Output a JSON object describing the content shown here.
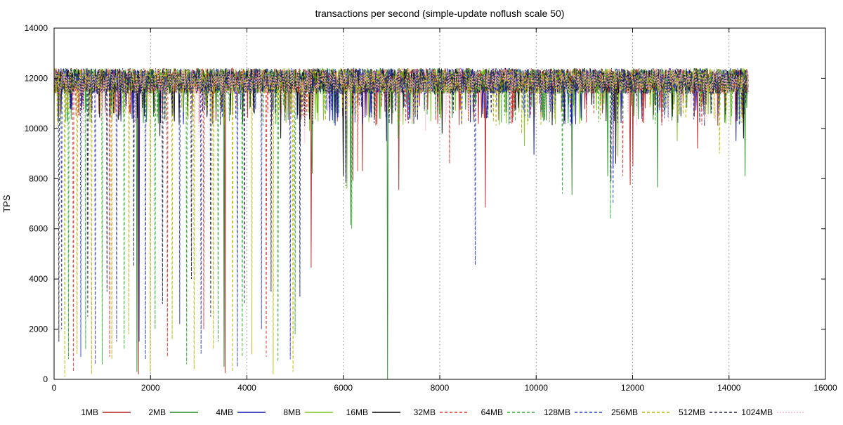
{
  "chart_data": {
    "type": "line",
    "title": "transactions per second (simple-update noflush scale 50)",
    "xlabel": "",
    "ylabel": "TPS",
    "xlim": [
      0,
      16000
    ],
    "ylim": [
      0,
      14000
    ],
    "xticks": [
      0,
      2000,
      4000,
      6000,
      8000,
      10000,
      12000,
      14000,
      16000
    ],
    "yticks": [
      0,
      2000,
      4000,
      6000,
      8000,
      10000,
      12000,
      14000
    ],
    "x_grid": true,
    "y_grid": false,
    "legend_position": "bottom",
    "x_range_of_data": [
      0,
      14400
    ],
    "baseline_band": [
      11200,
      12400
    ],
    "series": [
      {
        "name": "1MB",
        "color": "#b22222",
        "dash": "solid",
        "dips": [
          [
            1750,
            200
          ],
          [
            3550,
            250
          ],
          [
            5330,
            4450
          ],
          [
            6200,
            7900
          ],
          [
            6400,
            8300
          ],
          [
            7150,
            7550
          ],
          [
            8950,
            6850
          ],
          [
            11950,
            7750
          ],
          [
            12000,
            8500
          ],
          [
            13350,
            9200
          ]
        ]
      },
      {
        "name": "2MB",
        "color": "#228b22",
        "dash": "solid",
        "dips": [
          [
            1720,
            300
          ],
          [
            3520,
            500
          ],
          [
            5350,
            8200
          ],
          [
            6150,
            6150
          ],
          [
            6920,
            0
          ],
          [
            7140,
            9600
          ],
          [
            10740,
            7350
          ],
          [
            11480,
            8100
          ],
          [
            12520,
            7650
          ],
          [
            14330,
            8100
          ]
        ]
      },
      {
        "name": "4MB",
        "color": "#1010b0",
        "dash": "solid",
        "dips": [
          [
            1760,
            1500
          ],
          [
            6050,
            7900
          ],
          [
            6900,
            9500
          ],
          [
            9950,
            8950
          ],
          [
            11600,
            8400
          ],
          [
            14150,
            9500
          ]
        ]
      },
      {
        "name": "8MB",
        "color": "#7fc31c",
        "dash": "solid",
        "dips": [
          [
            5300,
            9900
          ],
          [
            6080,
            7600
          ],
          [
            9750,
            9300
          ],
          [
            11700,
            8900
          ],
          [
            12930,
            9500
          ]
        ]
      },
      {
        "name": "16MB",
        "color": "#000000",
        "dash": "solid",
        "dips": [
          [
            2200,
            9700
          ],
          [
            4700,
            9600
          ],
          [
            5100,
            9400
          ],
          [
            6000,
            8100
          ],
          [
            8050,
            9800
          ],
          [
            11650,
            8600
          ],
          [
            14300,
            9600
          ]
        ]
      },
      {
        "name": "32MB",
        "color": "#e0312b",
        "dash": "dashed",
        "dips": [
          [
            400,
            300
          ],
          [
            1150,
            900
          ],
          [
            2350,
            900
          ],
          [
            3100,
            2000
          ],
          [
            4400,
            900
          ],
          [
            6300,
            8300
          ],
          [
            8200,
            8600
          ],
          [
            11800,
            8100
          ]
        ]
      },
      {
        "name": "64MB",
        "color": "#2da82d",
        "dash": "dashed",
        "dips": [
          [
            300,
            800
          ],
          [
            650,
            1200
          ],
          [
            1000,
            600
          ],
          [
            1450,
            1200
          ],
          [
            2100,
            2000
          ],
          [
            2750,
            600
          ],
          [
            3400,
            1500
          ],
          [
            3900,
            900
          ],
          [
            4650,
            700
          ],
          [
            5000,
            1800
          ],
          [
            6180,
            6000
          ],
          [
            10540,
            7400
          ],
          [
            11540,
            6400
          ]
        ]
      },
      {
        "name": "128MB",
        "color": "#2a3ac8",
        "dash": "dashed",
        "dips": [
          [
            150,
            2000
          ],
          [
            550,
            900
          ],
          [
            850,
            600
          ],
          [
            1300,
            1500
          ],
          [
            1900,
            800
          ],
          [
            2600,
            2200
          ],
          [
            3050,
            1000
          ],
          [
            3800,
            500
          ],
          [
            4300,
            2000
          ],
          [
            4900,
            800
          ],
          [
            8740,
            4550
          ],
          [
            11600,
            7000
          ]
        ]
      },
      {
        "name": "256MB",
        "color": "#b8b800",
        "dash": "dashed",
        "dips": [
          [
            220,
            100
          ],
          [
            480,
            1000
          ],
          [
            780,
            200
          ],
          [
            1200,
            800
          ],
          [
            1550,
            1800
          ],
          [
            2000,
            300
          ],
          [
            2450,
            1600
          ],
          [
            2900,
            400
          ],
          [
            3300,
            1200
          ],
          [
            3700,
            300
          ],
          [
            4100,
            1000
          ],
          [
            4550,
            200
          ],
          [
            4950,
            300
          ],
          [
            9700,
            9800
          ],
          [
            13800,
            9000
          ]
        ]
      },
      {
        "name": "512MB",
        "color": "#1f1f4f",
        "dash": "dashed",
        "dips": [
          [
            100,
            1500
          ],
          [
            700,
            2500
          ],
          [
            1100,
            3500
          ],
          [
            1650,
            4500
          ],
          [
            2250,
            3000
          ],
          [
            2850,
            4000
          ],
          [
            3250,
            2500
          ],
          [
            3950,
            3000
          ],
          [
            4500,
            3500
          ],
          [
            5100,
            3300
          ],
          [
            6050,
            7700
          ],
          [
            11550,
            7900
          ]
        ]
      },
      {
        "name": "1024MB",
        "color": "#ffb6c1",
        "dash": "dotted",
        "dips": [
          [
            600,
            9800
          ],
          [
            3000,
            9600
          ],
          [
            5200,
            9400
          ],
          [
            7700,
            9900
          ],
          [
            11600,
            9300
          ]
        ]
      }
    ]
  }
}
